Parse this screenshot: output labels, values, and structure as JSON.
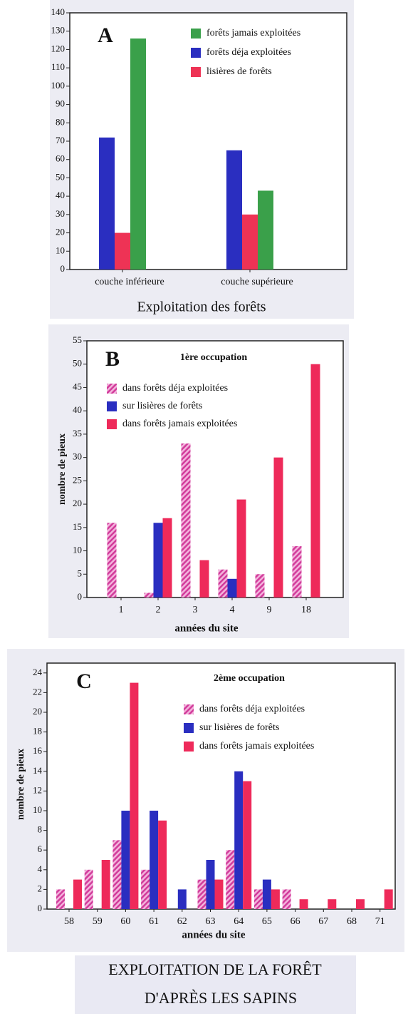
{
  "chart_data": [
    {
      "type": "bar",
      "panel_label": "A",
      "x_label": "Exploitation des forêts",
      "categories": [
        "couche inférieure",
        "couche supérieure"
      ],
      "series": [
        {
          "name": "forêts jamais exploitées",
          "color": "#3aa04a",
          "values": [
            126,
            43
          ]
        },
        {
          "name": "forêts déja exploitées",
          "color": "#2a2ec0",
          "values": [
            72,
            65
          ]
        },
        {
          "name": "lisières de forêts",
          "color": "#ee3355",
          "values": [
            20,
            30
          ]
        }
      ],
      "ylim": [
        0,
        140
      ],
      "yticks": [
        0,
        10,
        20,
        30,
        40,
        50,
        60,
        70,
        80,
        90,
        100,
        110,
        120,
        130,
        140
      ],
      "legend": "upper right"
    },
    {
      "type": "bar",
      "panel_label": "B",
      "title": "1ère occupation",
      "y_label": "nombre de pieux",
      "x_label": "années du site",
      "categories": [
        "1",
        "2",
        "3",
        "4",
        "9",
        "18"
      ],
      "series": [
        {
          "name": "dans forêts déja exploitées",
          "color": "#d23c9b",
          "pattern": "hatch",
          "values": [
            16,
            1,
            33,
            6,
            5,
            11
          ]
        },
        {
          "name": "sur lisières de forêts",
          "color": "#2a2ec0",
          "values": [
            0,
            16,
            0,
            4,
            0,
            0
          ]
        },
        {
          "name": "dans forêts jamais exploitées",
          "color": "#ee2a5a",
          "values": [
            0,
            17,
            8,
            21,
            30,
            50
          ]
        }
      ],
      "ylim": [
        0,
        55
      ],
      "yticks": [
        0,
        5,
        10,
        15,
        20,
        25,
        30,
        35,
        40,
        45,
        50,
        55
      ],
      "legend": "upper left"
    },
    {
      "type": "bar",
      "panel_label": "C",
      "title": "2ème occupation",
      "y_label": "nombre de pieux",
      "x_label": "années du site",
      "categories": [
        "58",
        "59",
        "60",
        "61",
        "62",
        "63",
        "64",
        "65",
        "66",
        "67",
        "68",
        "71"
      ],
      "series": [
        {
          "name": "dans forêts déja exploitées",
          "color": "#d23c9b",
          "pattern": "hatch",
          "values": [
            2,
            4,
            7,
            4,
            0,
            3,
            6,
            2,
            2,
            0,
            0,
            0
          ]
        },
        {
          "name": "sur lisières de forêts",
          "color": "#2a2ec0",
          "values": [
            0,
            0,
            10,
            10,
            2,
            5,
            14,
            3,
            0,
            0,
            0,
            0
          ]
        },
        {
          "name": "dans forêts jamais exploitées",
          "color": "#ee2a5a",
          "values": [
            3,
            5,
            23,
            9,
            0,
            3,
            13,
            2,
            1,
            1,
            1,
            2
          ]
        }
      ],
      "ylim": [
        0,
        25
      ],
      "yticks": [
        0,
        2,
        4,
        6,
        8,
        10,
        12,
        14,
        16,
        18,
        20,
        22,
        24
      ],
      "legend": "upper right"
    }
  ],
  "caption": [
    "EXPLOITATION DE LA FORÊT",
    "D'APRÈS LES SAPINS"
  ]
}
